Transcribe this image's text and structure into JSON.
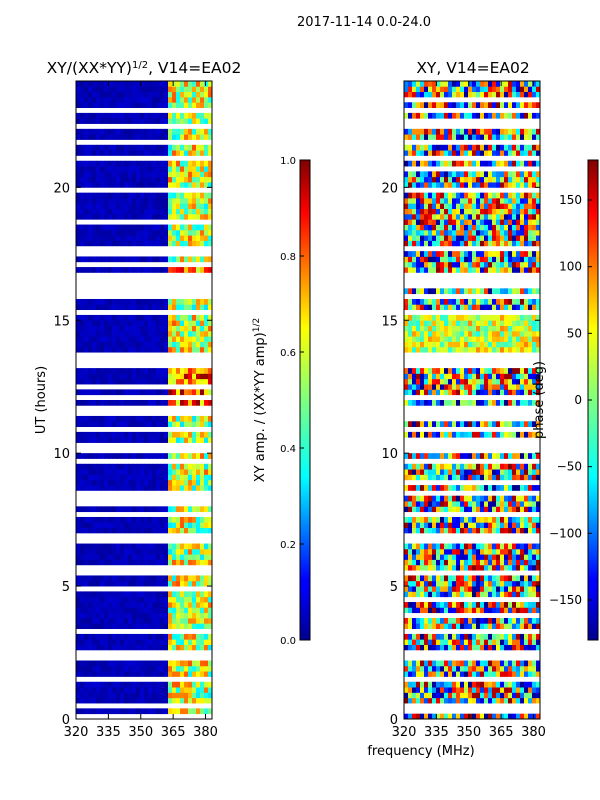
{
  "figure_title": "2017-11-14 0.0-24.0",
  "xlabel": "frequency (MHz)",
  "chart_data": [
    {
      "type": "heatmap",
      "title_main": "XY/(XX*YY)",
      "title_sup": "1/2",
      "title_rest": ", V14=EA02",
      "xlabel": "",
      "ylabel": "UT (hours)",
      "x_ticks": [
        320,
        335,
        350,
        365,
        380
      ],
      "x_range": [
        320,
        383
      ],
      "y_ticks": [
        0,
        5,
        10,
        15,
        20
      ],
      "y_range": [
        0,
        24
      ],
      "colorbar": {
        "label_main": "XY amp. / (XX*YY amp)",
        "label_sup": "1/2",
        "ticks": [
          "0.0",
          "0.2",
          "0.4",
          "0.6",
          "0.8",
          "1.0"
        ],
        "range": [
          0,
          1
        ]
      }
    },
    {
      "type": "heatmap",
      "title_main": "XY, V14=EA02",
      "xlabel": "",
      "ylabel": "",
      "x_ticks": [
        320,
        335,
        350,
        365,
        380
      ],
      "x_range": [
        320,
        383
      ],
      "y_ticks": [
        0,
        5,
        10,
        15,
        20
      ],
      "y_range": [
        0,
        24
      ],
      "colorbar": {
        "label_main": "phase (deg)",
        "ticks": [
          "−150",
          "−100",
          "−50",
          "0",
          "50",
          "100",
          "150"
        ],
        "range": [
          -180,
          180
        ]
      }
    }
  ],
  "colors": {
    "jet_low": "#00008f",
    "jet_mid": "#7fff7f",
    "jet_high": "#800000",
    "gap": "#ffffff",
    "frame": "#000000"
  }
}
